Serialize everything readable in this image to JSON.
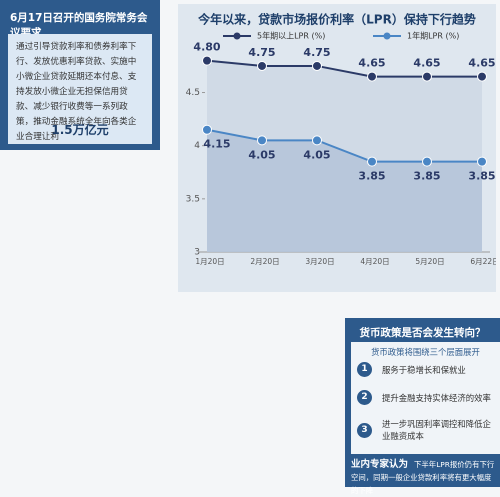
{
  "left_panel": {
    "title": "6月17日召开的国务院常务会议要求",
    "body": "通过引导贷款利率和债券利率下行、发放优惠利率贷款、实施中小微企业贷款延期还本付息、支持发放小微企业无担保信用贷款、减少银行收费等一系列政策，推动金融系统全年向各类企业合理让利",
    "amount": "1.5万亿元"
  },
  "chart_data": {
    "type": "line",
    "title": "今年以来，贷款市场报价利率（LPR）保持下行趋势",
    "categories": [
      "1月20日",
      "2月20日",
      "3月20日",
      "4月20日",
      "5月20日",
      "6月22日"
    ],
    "series": [
      {
        "name": "5年期以上LPR (%)",
        "color": "#2b3a67",
        "values": [
          4.8,
          4.75,
          4.75,
          4.65,
          4.65,
          4.65
        ],
        "value_labels": [
          "4.80",
          "4.75",
          "4.75",
          "4.65",
          "4.65",
          "4.65"
        ]
      },
      {
        "name": "1年期LPR (%)",
        "color": "#4a86c5",
        "values": [
          4.15,
          4.05,
          4.05,
          3.85,
          3.85,
          3.85
        ],
        "value_labels": [
          "4.15",
          "4.05",
          "4.05",
          "3.85",
          "3.85",
          "3.85"
        ]
      }
    ],
    "ylim": [
      3,
      4.9
    ],
    "yticks": [
      3,
      3.5,
      4,
      4.5
    ],
    "grid": false
  },
  "right_panel": {
    "question": "货币政策是否会发生转向？",
    "subtitle": "货币政策将围绕三个层面展开",
    "items": [
      {
        "num": "1",
        "text": "服务于稳增长和保就业"
      },
      {
        "num": "2",
        "text": "提升金融支持实体经济的效率"
      },
      {
        "num": "3",
        "text": "进一步巩固利率调控和降低企业融资成本"
      }
    ],
    "expert_label": "业内专家认为",
    "expert_text": "下半年LPR报价仍有下行空间，同期一般企业贷款利率将有更大幅度的下降"
  }
}
